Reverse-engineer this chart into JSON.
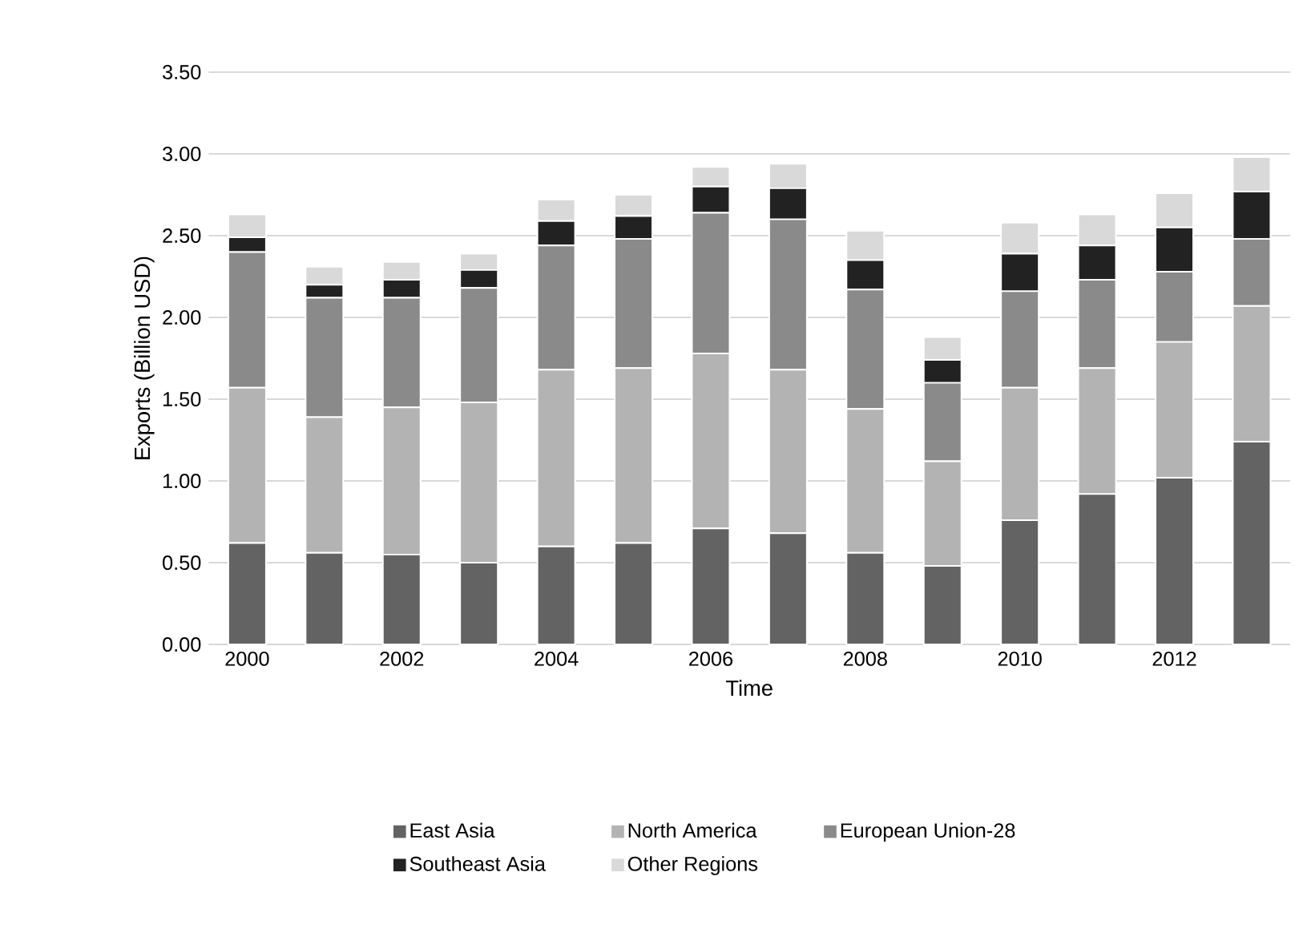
{
  "chart_data": {
    "type": "bar",
    "stacked": true,
    "xlabel": "Time",
    "ylabel": "Exports (Billion USD)",
    "categories": [
      "2000",
      null,
      "2002",
      null,
      "2004",
      null,
      "2006",
      null,
      "2008",
      null,
      "2010",
      null,
      "2012",
      null
    ],
    "series": [
      {
        "name": "East Asia",
        "color": "#636363",
        "values": [
          0.62,
          0.56,
          0.55,
          0.5,
          0.6,
          0.62,
          0.71,
          0.68,
          0.56,
          0.48,
          0.76,
          0.92,
          1.02,
          1.24
        ]
      },
      {
        "name": "North America",
        "color": "#b3b3b3",
        "values": [
          0.95,
          0.83,
          0.9,
          0.98,
          1.08,
          1.07,
          1.07,
          1.0,
          0.88,
          0.64,
          0.81,
          0.77,
          0.83,
          0.83
        ]
      },
      {
        "name": "European Union-28",
        "color": "#8a8a8a",
        "values": [
          0.83,
          0.73,
          0.67,
          0.7,
          0.76,
          0.79,
          0.86,
          0.92,
          0.73,
          0.48,
          0.59,
          0.54,
          0.43,
          0.41
        ]
      },
      {
        "name": "Southeast Asia",
        "color": "#222222",
        "values": [
          0.09,
          0.08,
          0.11,
          0.11,
          0.15,
          0.14,
          0.16,
          0.19,
          0.18,
          0.14,
          0.23,
          0.21,
          0.27,
          0.29
        ]
      },
      {
        "name": "Other Regions",
        "color": "#d9d9d9",
        "values": [
          0.14,
          0.11,
          0.11,
          0.1,
          0.13,
          0.13,
          0.12,
          0.15,
          0.18,
          0.14,
          0.19,
          0.19,
          0.21,
          0.21
        ]
      }
    ],
    "ylim": [
      0,
      3.5
    ],
    "yticks": [
      {
        "value": 0,
        "label": "0.00"
      },
      {
        "value": 0.5,
        "label": "0.50"
      },
      {
        "value": 1,
        "label": "1.00"
      },
      {
        "value": 1.5,
        "label": "1.50"
      },
      {
        "value": 2,
        "label": "2.00"
      },
      {
        "value": 2.5,
        "label": "2.50"
      },
      {
        "value": 3,
        "label": "3.00"
      },
      {
        "value": 3.5,
        "label": "3.50"
      }
    ],
    "grid": "y",
    "legend": "bottom"
  }
}
